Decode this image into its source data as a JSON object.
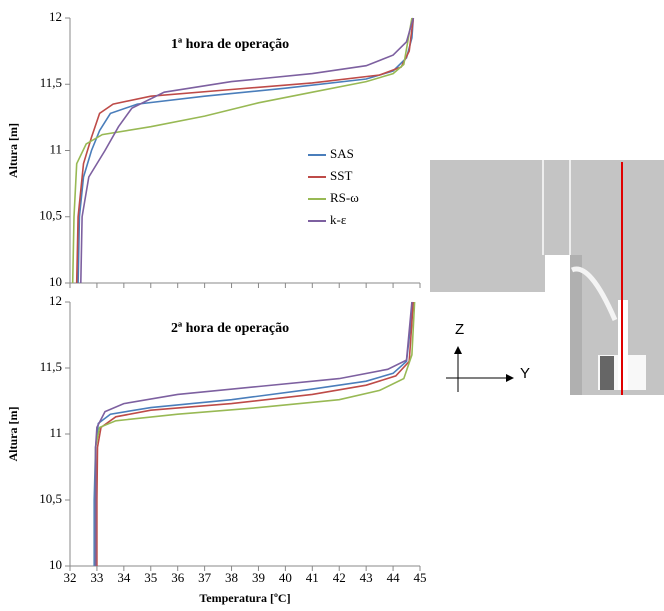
{
  "chart_data": [
    {
      "type": "line",
      "title": "1ª hora de operação",
      "y_label": "Altura [m]",
      "xlim": [
        32,
        45
      ],
      "xticks": [
        32,
        33,
        34,
        35,
        36,
        37,
        38,
        39,
        40,
        41,
        42,
        43,
        44,
        45
      ],
      "show_xtick_labels": false,
      "ylim": [
        10,
        12
      ],
      "yticks": [
        10,
        {
          "value": 10.5,
          "label": "10,5"
        },
        11,
        {
          "value": 11.5,
          "label": "11,5"
        },
        12
      ],
      "legend": "center-right",
      "series": [
        {
          "name": "SAS",
          "color": "#4a7ebb",
          "x": [
            32.3,
            32.35,
            32.5,
            32.8,
            33.1,
            33.5,
            34.5,
            37,
            40,
            43,
            44,
            44.5,
            44.7,
            44.75
          ],
          "values": [
            10,
            10.5,
            10.8,
            11.0,
            11.15,
            11.28,
            11.35,
            11.41,
            11.47,
            11.54,
            11.6,
            11.7,
            11.85,
            12
          ]
        },
        {
          "name": "SST",
          "color": "#be4b48",
          "x": [
            32.25,
            32.3,
            32.5,
            32.8,
            33.1,
            33.6,
            35,
            38,
            41,
            43.5,
            44.3,
            44.6,
            44.75
          ],
          "values": [
            10,
            10.5,
            10.9,
            11.1,
            11.28,
            11.35,
            11.41,
            11.46,
            11.51,
            11.57,
            11.63,
            11.75,
            12
          ]
        },
        {
          "name": "RS-ω",
          "color": "#98b954",
          "x": [
            32.1,
            32.15,
            32.25,
            32.6,
            33.2,
            35,
            37,
            39,
            41,
            43,
            44,
            44.4,
            44.7
          ],
          "values": [
            10,
            10.5,
            10.9,
            11.05,
            11.12,
            11.18,
            11.26,
            11.36,
            11.44,
            11.52,
            11.58,
            11.65,
            12
          ]
        },
        {
          "name": "k-ε",
          "color": "#7d60a0",
          "x": [
            32.4,
            32.45,
            32.7,
            33.3,
            33.8,
            34.3,
            35.5,
            38,
            41,
            43,
            44,
            44.5,
            44.75
          ],
          "values": [
            10,
            10.5,
            10.8,
            11.0,
            11.18,
            11.32,
            11.44,
            11.52,
            11.58,
            11.64,
            11.72,
            11.82,
            12
          ]
        }
      ]
    },
    {
      "type": "line",
      "title": "2ª hora de operação",
      "y_label": "Altura [m]",
      "x_label": "Temperatura [ºC]",
      "xlim": [
        32,
        45
      ],
      "xticks": [
        32,
        33,
        34,
        35,
        36,
        37,
        38,
        39,
        40,
        41,
        42,
        43,
        44,
        45
      ],
      "show_xtick_labels": true,
      "ylim": [
        10,
        12
      ],
      "yticks": [
        10,
        {
          "value": 10.5,
          "label": "10,5"
        },
        11,
        {
          "value": 11.5,
          "label": "11,5"
        },
        12
      ],
      "series": [
        {
          "name": "SAS",
          "color": "#4a7ebb",
          "x": [
            32.9,
            32.9,
            32.95,
            33.05,
            33.5,
            35,
            38,
            41,
            43,
            44,
            44.5,
            44.75
          ],
          "values": [
            10,
            10.5,
            10.9,
            11.08,
            11.15,
            11.2,
            11.26,
            11.34,
            11.4,
            11.46,
            11.55,
            12
          ]
        },
        {
          "name": "SST",
          "color": "#be4b48",
          "x": [
            33.0,
            33.0,
            33.02,
            33.15,
            33.7,
            35,
            38,
            41,
            43,
            44.1,
            44.6,
            44.75
          ],
          "values": [
            10,
            10.5,
            10.9,
            11.05,
            11.13,
            11.18,
            11.23,
            11.3,
            11.37,
            11.44,
            11.55,
            12
          ]
        },
        {
          "name": "RS-ω",
          "color": "#98b954",
          "x": [
            32.95,
            32.95,
            33.1,
            33.7,
            36,
            39,
            42,
            43.5,
            44.4,
            44.7,
            44.8
          ],
          "values": [
            10,
            10.9,
            11.05,
            11.1,
            11.15,
            11.2,
            11.26,
            11.33,
            11.42,
            11.6,
            12
          ]
        },
        {
          "name": "k-ε",
          "color": "#7d60a0",
          "x": [
            32.95,
            32.95,
            33.0,
            33.3,
            34,
            36,
            39,
            42,
            43.8,
            44.5,
            44.7
          ],
          "values": [
            10,
            10.9,
            11.05,
            11.17,
            11.23,
            11.3,
            11.36,
            11.42,
            11.49,
            11.56,
            12
          ]
        }
      ]
    }
  ],
  "diagram": {
    "z_label": "Z",
    "y_label": "Y"
  }
}
